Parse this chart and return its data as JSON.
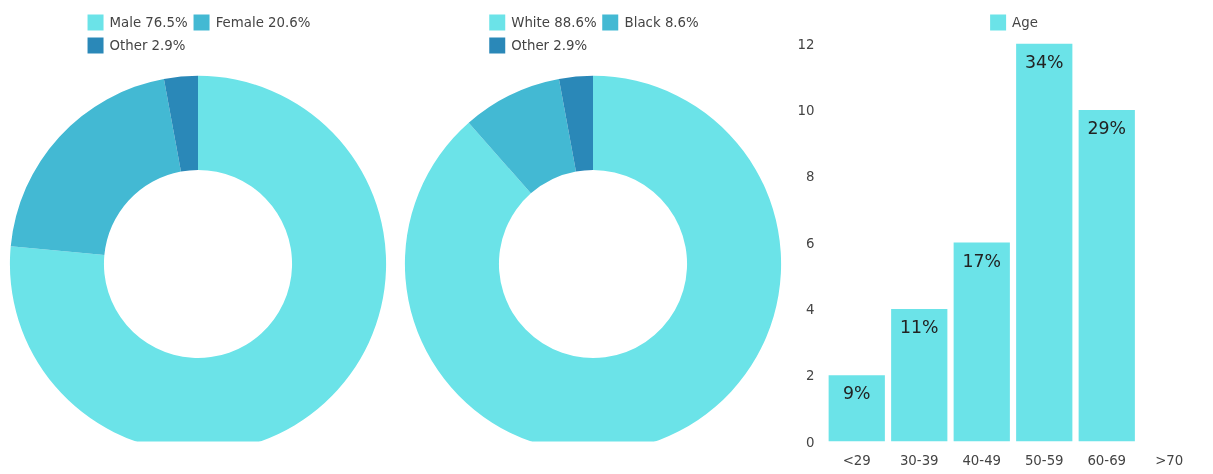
{
  "chart_data": [
    {
      "type": "donut",
      "categories": [
        "Male 76.5%",
        "Female 20.6%",
        "Other 2.9%"
      ],
      "values": [
        76.5,
        20.6,
        2.9
      ],
      "colors": [
        "#6be3e8",
        "#43b9d3",
        "#2a88b8"
      ],
      "legend": "top"
    },
    {
      "type": "donut",
      "categories": [
        "White 88.6%",
        "Black 8.6%",
        "Other 2.9%"
      ],
      "values": [
        88.6,
        8.6,
        2.9
      ],
      "colors": [
        "#6be3e8",
        "#43b9d3",
        "#2a88b8"
      ],
      "legend": "top"
    },
    {
      "type": "bar",
      "categories": [
        "<29",
        "30-39",
        "40-49",
        "50-59",
        "60-69",
        ">70"
      ],
      "series": [
        {
          "name": "Age",
          "color": "#6be3e8",
          "values": [
            2,
            4,
            6,
            12,
            10,
            0
          ]
        }
      ],
      "value_labels": [
        "9%",
        "11%",
        "17%",
        "34%",
        "29%",
        null
      ],
      "ylim": [
        0,
        13
      ],
      "yticks": [
        0,
        2,
        4,
        6,
        8,
        10,
        12
      ],
      "grid": false,
      "legend": "top"
    }
  ]
}
